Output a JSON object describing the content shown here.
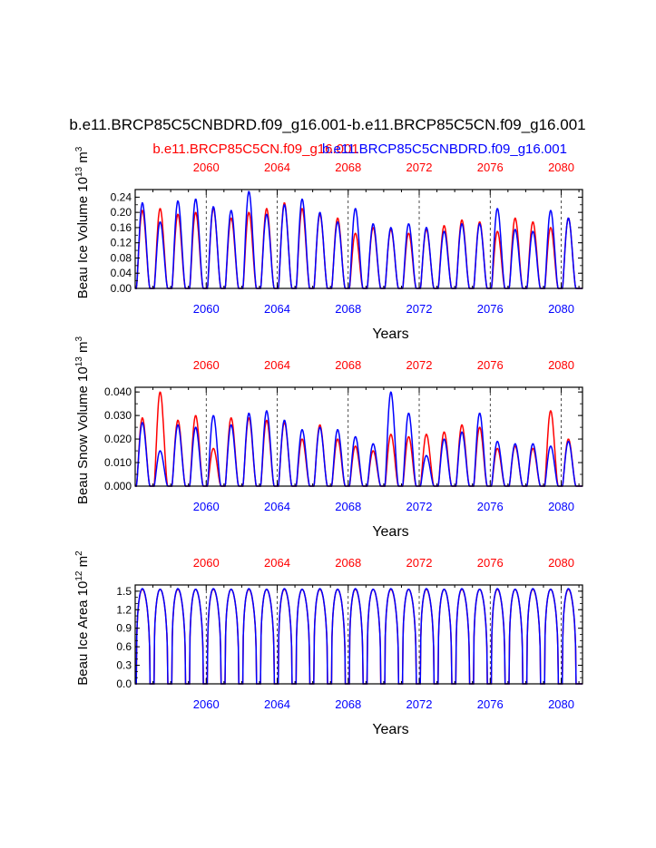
{
  "title": "b.e11.BRCP85C5CNBDRD.f09_g16.001-b.e11.BRCP85C5CN.f09_g16.001",
  "legend": {
    "red_label": "b.e11.BRCP85C5CN.f09_g16.001",
    "blue_label": "b.e11.BRCP85C5CNBDRD.f09_g16.001"
  },
  "colors": {
    "red": "#ff0000",
    "blue": "#0000ff",
    "axis": "#000000"
  },
  "chart_data": [
    {
      "type": "line",
      "name": "ice-volume",
      "ylabel_main": "Beau Ice Volume 10",
      "ylabel_sup": "13",
      "ylabel_unit": "m",
      "ylabel_unit_sup": "3",
      "xlabel": "Years",
      "xlim": [
        2056,
        2081.2
      ],
      "ylim": [
        0,
        0.26
      ],
      "yticks": [
        "0.00",
        "0.04",
        "0.08",
        "0.12",
        "0.16",
        "0.20",
        "0.24"
      ],
      "yminor": 0.02,
      "xticks": [
        "2060",
        "2064",
        "2068",
        "2072",
        "2076",
        "2080"
      ],
      "series": [
        {
          "name": "b.e11.BRCP85C5CN.f09_g16.001",
          "color": "red",
          "peaks": [
            0.205,
            0.21,
            0.195,
            0.2,
            0.21,
            0.185,
            0.2,
            0.21,
            0.225,
            0.21,
            0.195,
            0.185,
            0.145,
            0.16,
            0.155,
            0.145,
            0.155,
            0.165,
            0.18,
            0.175,
            0.15,
            0.185,
            0.175,
            0.16,
            0.185
          ]
        },
        {
          "name": "b.e11.BRCP85C5CNBDRD.f09_g16.001",
          "color": "blue",
          "peaks": [
            0.225,
            0.175,
            0.23,
            0.235,
            0.215,
            0.205,
            0.255,
            0.195,
            0.22,
            0.235,
            0.2,
            0.175,
            0.21,
            0.17,
            0.16,
            0.17,
            0.16,
            0.15,
            0.17,
            0.17,
            0.21,
            0.155,
            0.15,
            0.205,
            0.185
          ]
        }
      ]
    },
    {
      "type": "line",
      "name": "snow-volume",
      "ylabel_main": "Beau Snow Volume 10",
      "ylabel_sup": "13",
      "ylabel_unit": "m",
      "ylabel_unit_sup": "3",
      "xlabel": "Years",
      "xlim": [
        2056,
        2081.2
      ],
      "ylim": [
        0,
        0.042
      ],
      "yticks": [
        "0.000",
        "0.010",
        "0.020",
        "0.030",
        "0.040"
      ],
      "yminor": 0.005,
      "xticks": [
        "2060",
        "2064",
        "2068",
        "2072",
        "2076",
        "2080"
      ],
      "series": [
        {
          "name": "b.e11.BRCP85C5CN.f09_g16.001",
          "color": "red",
          "peaks": [
            0.029,
            0.04,
            0.028,
            0.03,
            0.016,
            0.029,
            0.029,
            0.028,
            0.027,
            0.02,
            0.026,
            0.02,
            0.017,
            0.015,
            0.022,
            0.021,
            0.022,
            0.023,
            0.026,
            0.025,
            0.016,
            0.017,
            0.016,
            0.032,
            0.02
          ]
        },
        {
          "name": "b.e11.BRCP85C5CNBDRD.f09_g16.001",
          "color": "blue",
          "peaks": [
            0.027,
            0.015,
            0.026,
            0.025,
            0.03,
            0.026,
            0.031,
            0.032,
            0.028,
            0.024,
            0.025,
            0.024,
            0.021,
            0.018,
            0.04,
            0.031,
            0.013,
            0.02,
            0.023,
            0.031,
            0.019,
            0.018,
            0.018,
            0.017,
            0.019
          ]
        }
      ]
    },
    {
      "type": "line",
      "name": "ice-area",
      "ylabel_main": "Beau Ice Area 10",
      "ylabel_sup": "12",
      "ylabel_unit": "m",
      "ylabel_unit_sup": "2",
      "xlabel": "Years",
      "xlim": [
        2056,
        2081.2
      ],
      "ylim": [
        0,
        1.6
      ],
      "yticks": [
        "0.0",
        "0.3",
        "0.6",
        "0.9",
        "1.2",
        "1.5"
      ],
      "yminor": 0.1,
      "xticks": [
        "2060",
        "2064",
        "2068",
        "2072",
        "2076",
        "2080"
      ],
      "series": [
        {
          "name": "b.e11.BRCP85C5CN.f09_g16.001",
          "color": "red",
          "peaks": [
            1.53,
            1.53,
            1.53,
            1.53,
            1.53,
            1.53,
            1.53,
            1.53,
            1.53,
            1.53,
            1.53,
            1.53,
            1.53,
            1.53,
            1.53,
            1.53,
            1.53,
            1.53,
            1.53,
            1.53,
            1.53,
            1.53,
            1.53,
            1.53,
            1.53
          ]
        },
        {
          "name": "b.e11.BRCP85C5CNBDRD.f09_g16.001",
          "color": "blue",
          "peaks": [
            1.54,
            1.53,
            1.54,
            1.53,
            1.54,
            1.53,
            1.54,
            1.53,
            1.54,
            1.53,
            1.54,
            1.53,
            1.54,
            1.53,
            1.54,
            1.53,
            1.54,
            1.53,
            1.54,
            1.53,
            1.54,
            1.53,
            1.54,
            1.53,
            1.54
          ]
        }
      ]
    }
  ]
}
